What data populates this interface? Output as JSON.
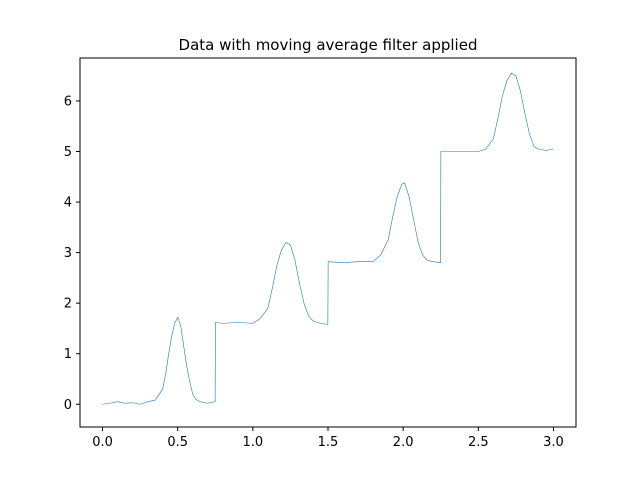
{
  "chart_data": {
    "type": "line",
    "title": "Data with moving average filter applied",
    "xlabel": "",
    "ylabel": "",
    "xlim": [
      -0.15,
      3.15
    ],
    "ylim": [
      -0.45,
      6.85
    ],
    "xticks": [
      0.0,
      0.5,
      1.0,
      1.5,
      2.0,
      2.5,
      3.0
    ],
    "xtick_labels": [
      "0.0",
      "0.5",
      "1.0",
      "1.5",
      "2.0",
      "2.5",
      "3.0"
    ],
    "yticks": [
      0,
      1,
      2,
      3,
      4,
      5,
      6
    ],
    "ytick_labels": [
      "0",
      "1",
      "2",
      "3",
      "4",
      "5",
      "6"
    ],
    "grid": false,
    "series": [
      {
        "color": "#1f77b4",
        "x": [
          0.0,
          0.05,
          0.1,
          0.15,
          0.2,
          0.25,
          0.3,
          0.35,
          0.4,
          0.42,
          0.44,
          0.46,
          0.48,
          0.5,
          0.52,
          0.54,
          0.56,
          0.58,
          0.6,
          0.62,
          0.65,
          0.7,
          0.749,
          0.751,
          0.8,
          0.9,
          1.0,
          1.05,
          1.1,
          1.13,
          1.16,
          1.19,
          1.22,
          1.25,
          1.28,
          1.31,
          1.34,
          1.37,
          1.4,
          1.45,
          1.499,
          1.501,
          1.6,
          1.7,
          1.8,
          1.85,
          1.9,
          1.93,
          1.96,
          1.99,
          2.01,
          2.04,
          2.07,
          2.1,
          2.13,
          2.16,
          2.2,
          2.249,
          2.251,
          2.35,
          2.5,
          2.55,
          2.6,
          2.63,
          2.66,
          2.69,
          2.72,
          2.75,
          2.78,
          2.81,
          2.84,
          2.87,
          2.9,
          2.95,
          3.0
        ],
        "y": [
          0.0,
          0.02,
          0.05,
          0.02,
          0.03,
          0.0,
          0.05,
          0.08,
          0.3,
          0.6,
          1.0,
          1.35,
          1.6,
          1.72,
          1.55,
          1.15,
          0.75,
          0.45,
          0.2,
          0.1,
          0.05,
          0.02,
          0.05,
          1.62,
          1.6,
          1.62,
          1.6,
          1.7,
          1.9,
          2.3,
          2.75,
          3.05,
          3.2,
          3.15,
          2.85,
          2.4,
          2.0,
          1.75,
          1.65,
          1.6,
          1.58,
          2.82,
          2.8,
          2.82,
          2.82,
          2.95,
          3.25,
          3.7,
          4.1,
          4.35,
          4.38,
          4.1,
          3.65,
          3.2,
          2.95,
          2.85,
          2.82,
          2.8,
          5.0,
          5.0,
          5.0,
          5.05,
          5.25,
          5.65,
          6.1,
          6.4,
          6.55,
          6.5,
          6.2,
          5.75,
          5.35,
          5.1,
          5.05,
          5.02,
          5.05
        ]
      }
    ]
  }
}
